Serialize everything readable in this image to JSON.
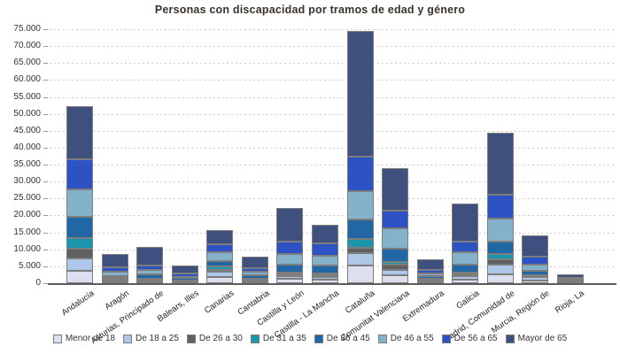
{
  "chart_data": {
    "type": "bar",
    "stacked": true,
    "title": "Personas con discapacidad por tramos de edad y género",
    "categories": [
      "Andalucía",
      "Aragón",
      "Asturias, Principado de",
      "Balears, Illes",
      "Canarias",
      "Cantabria",
      "Castilla y León",
      "Castilla - La Mancha",
      "Cataluña",
      "Comunitat Valenciana",
      "Extremadura",
      "Galicia",
      "Madrid, Comunidad de",
      "Murcia, Región de",
      "Rioja, La"
    ],
    "series": [
      {
        "name": "Menor de 18",
        "color": "#dcdfee",
        "values": [
          3700,
          500,
          500,
          250,
          1830,
          600,
          1300,
          1100,
          5200,
          2400,
          400,
          1100,
          2600,
          700,
          150
        ]
      },
      {
        "name": "De 18 a 25",
        "color": "#aec6e8",
        "values": [
          3500,
          500,
          400,
          200,
          1500,
          400,
          800,
          700,
          3700,
          1600,
          350,
          1000,
          2900,
          1000,
          150
        ]
      },
      {
        "name": "De 26 a 30",
        "color": "#5f6062",
        "values": [
          2900,
          300,
          250,
          150,
          680,
          200,
          500,
          500,
          1600,
          1400,
          250,
          500,
          1600,
          400,
          100
        ]
      },
      {
        "name": "De 31 a 35",
        "color": "#1b96ac",
        "values": [
          3100,
          300,
          250,
          150,
          890,
          200,
          500,
          500,
          2600,
          1000,
          300,
          500,
          1500,
          300,
          100
        ]
      },
      {
        "name": "De 36 a 45",
        "color": "#2166a5",
        "values": [
          6400,
          500,
          1200,
          700,
          1570,
          900,
          2400,
          2400,
          5700,
          3700,
          900,
          2400,
          3700,
          1200,
          250
        ]
      },
      {
        "name": "De 46 a 55",
        "color": "#84b2ca",
        "values": [
          8000,
          1200,
          1200,
          500,
          2600,
          1000,
          3100,
          3000,
          8400,
          6000,
          800,
          3600,
          6800,
          2000,
          200
        ]
      },
      {
        "name": "De 56 a 65",
        "color": "#2c52c4",
        "values": [
          8900,
          1400,
          1500,
          1050,
          2450,
          1200,
          3700,
          3500,
          10200,
          5200,
          1000,
          3200,
          7000,
          2200,
          500
        ]
      },
      {
        "name": "Mayor de 65",
        "color": "#40507e",
        "values": [
          15800,
          4000,
          5500,
          2200,
          4200,
          3300,
          9900,
          5500,
          37000,
          12600,
          3000,
          11100,
          18300,
          6400,
          1100
        ]
      }
    ],
    "ylim": [
      0,
      75000
    ],
    "ytick_step": 5000,
    "grid": "dotted-horizontal",
    "legend_position": "bottom"
  },
  "y_axis": {
    "tick_labels": [
      "0",
      "5.000",
      "10.000",
      "15.000",
      "20.000",
      "25.000",
      "30.000",
      "35.000",
      "40.000",
      "45.000",
      "50.000",
      "55.000",
      "60.000",
      "65.000",
      "70.000",
      "75.000"
    ]
  }
}
